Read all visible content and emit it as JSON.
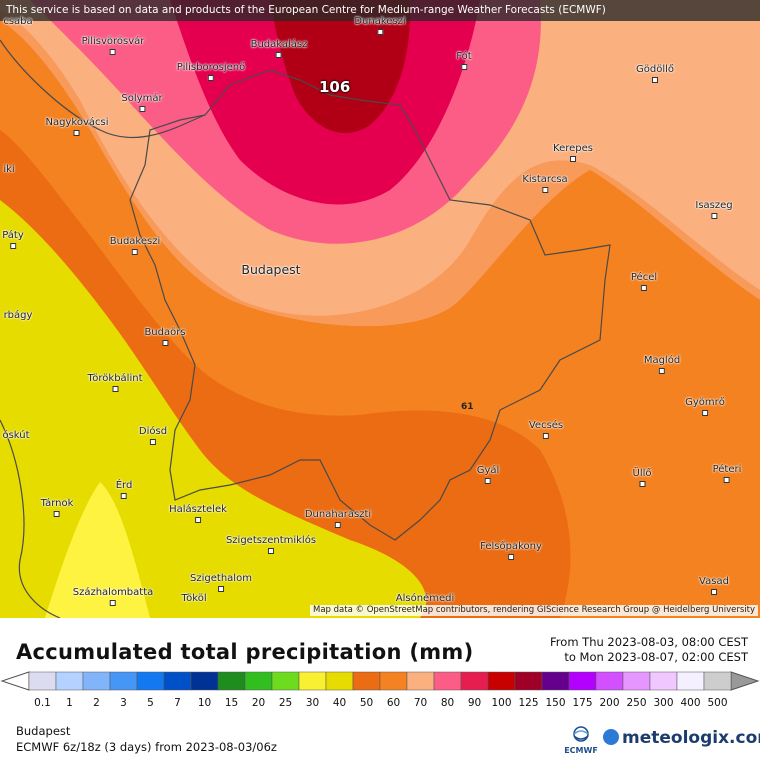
{
  "map": {
    "disclaimer": "This service is based on data and products of the European Centre for Medium-range Weather Forecasts (ECMWF)",
    "attribution": "Map data © OpenStreetMap contributors, rendering GIScience Research Group @ Heidelberg University",
    "max_value_label": "106",
    "contour_label": "61",
    "places": [
      {
        "name": "Dunakeszi"
      },
      {
        "name": "Pilisvörösvár"
      },
      {
        "name": "Budakalász"
      },
      {
        "name": "Fót"
      },
      {
        "name": "Gödöllő"
      },
      {
        "name": "Pilisborosjenő"
      },
      {
        "name": "Solymár"
      },
      {
        "name": "Nagykovácsi"
      },
      {
        "name": "Kerepes"
      },
      {
        "name": "Kistarcsa"
      },
      {
        "name": "Isaszeg"
      },
      {
        "name": "Budakeszi"
      },
      {
        "name": "Budapest"
      },
      {
        "name": "Pécel"
      },
      {
        "name": "Budaörs"
      },
      {
        "name": "Maglód"
      },
      {
        "name": "Törökbálint"
      },
      {
        "name": "Gyömrő"
      },
      {
        "name": "Diósd"
      },
      {
        "name": "Vecsés"
      },
      {
        "name": "Üllő"
      },
      {
        "name": "Péteri"
      },
      {
        "name": "Gyál"
      },
      {
        "name": "Érd"
      },
      {
        "name": "Tárnok"
      },
      {
        "name": "Halásztelek"
      },
      {
        "name": "Dunaharaszti"
      },
      {
        "name": "Szigetszentmiklós"
      },
      {
        "name": "Felsőpakony"
      },
      {
        "name": "Szigethalom"
      },
      {
        "name": "Százhalombatta"
      },
      {
        "name": "Tököl"
      },
      {
        "name": "Vasad"
      },
      {
        "name": "Alsónémedi"
      },
      {
        "name": "csaba"
      },
      {
        "name": "iki"
      },
      {
        "name": "Páty"
      },
      {
        "name": "rbágy"
      },
      {
        "name": "óskút"
      }
    ],
    "colors": {
      "base_orange": "#eb6c12",
      "light_orange": "#f79a5a",
      "salmon": "#fbb07f",
      "pink": "#fb5d87",
      "crimson": "#e5004f",
      "dark_red": "#b10016",
      "yellow": "#e6dc00",
      "bright_yellow": "#fff342",
      "mid_orange": "#f58221"
    }
  },
  "legend": {
    "title": "Accumulated total precipitation (mm)",
    "period_from": "From Thu 2023-08-03, 08:00 CEST",
    "period_to": "to Mon 2023-08-07, 02:00 CEST",
    "location": "Budapest",
    "model_line": "ECMWF 6z/18z (3 days)  from  2023-08-03/06z",
    "ecmwf_logo": "ECMWF",
    "brand": "meteologix.com",
    "ticks": [
      "0.1",
      "1",
      "2",
      "3",
      "5",
      "7",
      "10",
      "15",
      "20",
      "25",
      "30",
      "40",
      "50",
      "60",
      "70",
      "80",
      "90",
      "100",
      "125",
      "150",
      "175",
      "200",
      "250",
      "300",
      "400",
      "500"
    ],
    "colors": [
      "#dcdcf0",
      "#b4d2ff",
      "#82b4fa",
      "#4696f5",
      "#1478f0",
      "#0050c8",
      "#003296",
      "#1e8c1e",
      "#32be1e",
      "#6edc1e",
      "#faf032",
      "#e6dc00",
      "#eb6c12",
      "#f58221",
      "#fbb07f",
      "#fb5d87",
      "#e61e50",
      "#c80000",
      "#a00028",
      "#64008c",
      "#b400ff",
      "#d250ff",
      "#e696ff",
      "#f0c8ff",
      "#f5f0ff",
      "#cdcdcd"
    ]
  }
}
